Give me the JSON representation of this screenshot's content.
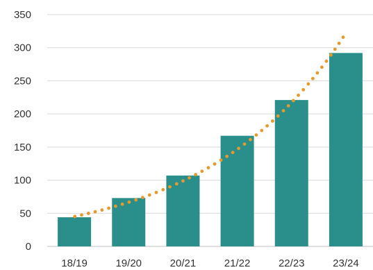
{
  "chart_data": {
    "type": "bar",
    "title": "",
    "xlabel": "",
    "ylabel": "",
    "categories": [
      "18/19",
      "19/20",
      "20/21",
      "21/22",
      "22/23",
      "23/24"
    ],
    "values": [
      44,
      73,
      107,
      167,
      221,
      292
    ],
    "ylim": [
      0,
      350
    ],
    "yticks": [
      0,
      50,
      100,
      150,
      200,
      250,
      300,
      350
    ],
    "grid": true,
    "legend": "none",
    "trendline": {
      "type": "exponential",
      "style": "dotted",
      "start_value": 45,
      "end_value": 322
    },
    "colors": {
      "bar": "#2a8f8a",
      "trendline": "#e59a2e",
      "grid": "#d9d9d9"
    }
  }
}
